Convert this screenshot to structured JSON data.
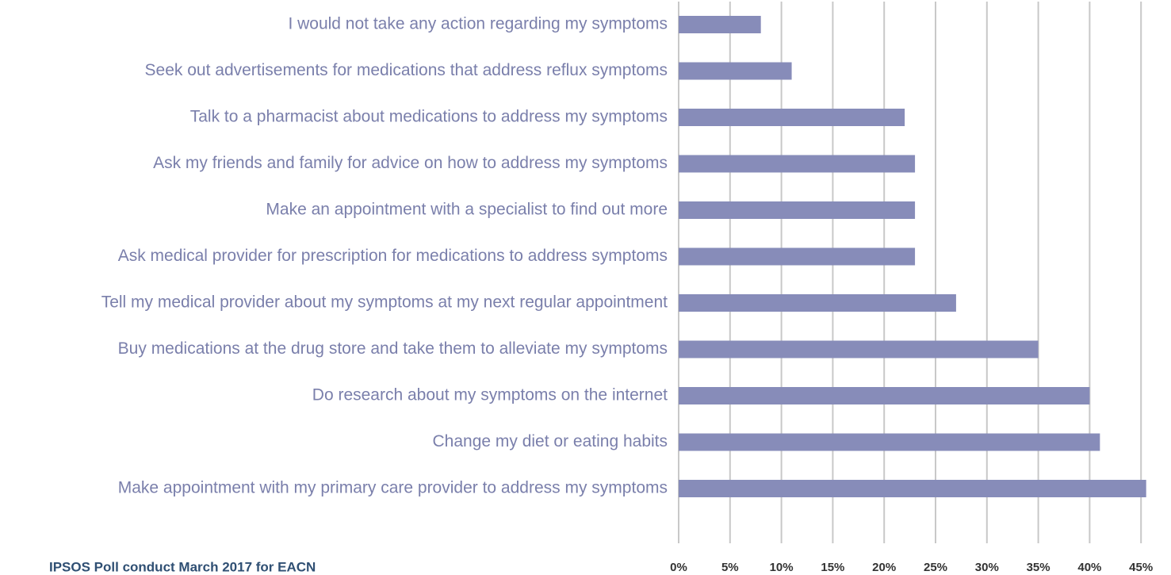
{
  "chart_data": {
    "type": "bar",
    "orientation": "horizontal",
    "categories": [
      "I would not take any action regarding my symptoms",
      "Seek out advertisements for medications that address reflux symptoms",
      "Talk to a pharmacist about medications to address my symptoms",
      "Ask my friends and family for advice on how to address my symptoms",
      "Make an appointment with a specialist to find out more",
      "Ask medical provider for prescription for medications to address symptoms",
      "Tell my medical provider about my symptoms at my next regular appointment",
      "Buy medications at the drug store and take them to alleviate my symptoms",
      "Do research about my symptoms on the internet",
      "Change my diet or eating habits",
      "Make appointment with my primary care provider to address my symptoms"
    ],
    "values": [
      8,
      11,
      22,
      23,
      23,
      23,
      27,
      35,
      40,
      41,
      45.5
    ],
    "color": "#878cb9",
    "xlim": [
      0,
      46
    ],
    "xticks": [
      {
        "value": 0,
        "label": "0%"
      },
      {
        "value": 5,
        "label": "5%"
      },
      {
        "value": 10,
        "label": "10%"
      },
      {
        "value": 15,
        "label": "15%"
      },
      {
        "value": 20,
        "label": "20%"
      },
      {
        "value": 25,
        "label": "25%"
      },
      {
        "value": 30,
        "label": "30%"
      },
      {
        "value": 35,
        "label": "35%"
      },
      {
        "value": 40,
        "label": "40%"
      },
      {
        "value": 45,
        "label": "45%"
      }
    ],
    "grid": true,
    "annotation": "IPSOS Poll conduct March 2017 for EACN"
  }
}
